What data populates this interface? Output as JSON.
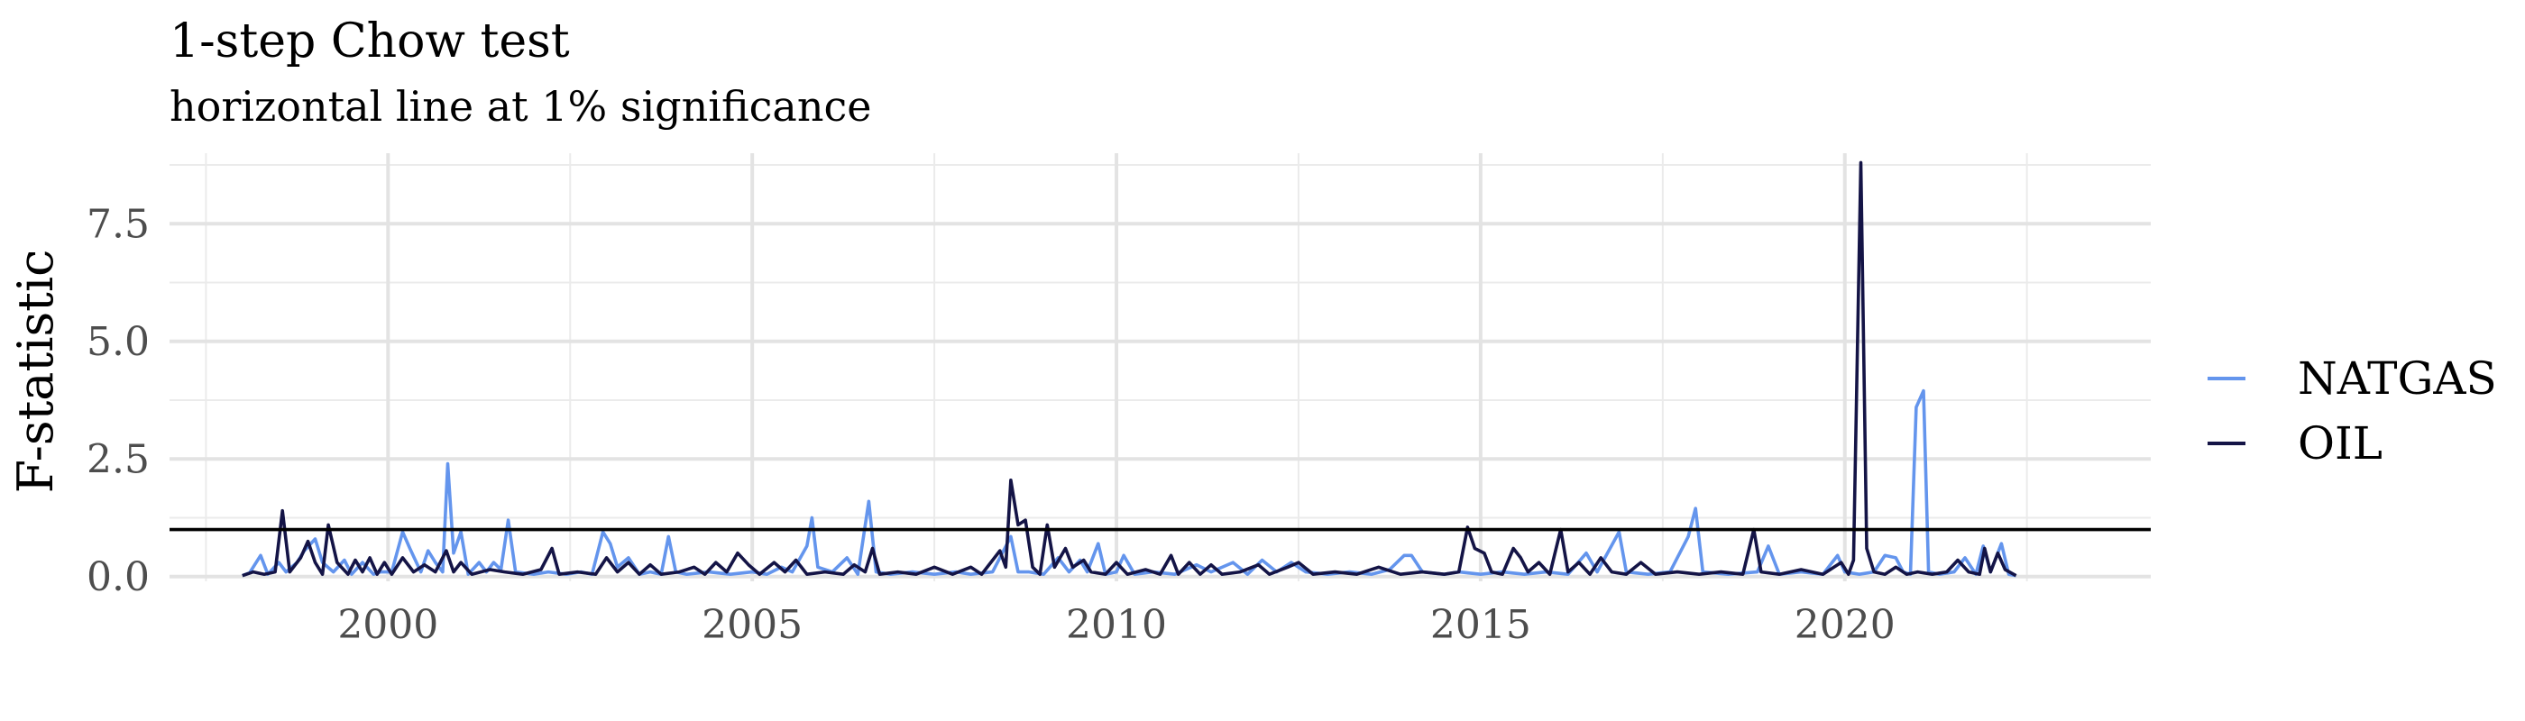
{
  "chart_data": {
    "type": "line",
    "title": "1-step Chow test",
    "subtitle": "horizontal line at 1% significance",
    "xlabel": "",
    "ylabel": "F-statistic",
    "xlim": [
      1997.0,
      2024.2
    ],
    "ylim": [
      -0.1,
      9.0
    ],
    "x_ticks": [
      2000,
      2005,
      2010,
      2015,
      2020
    ],
    "x_tick_labels": [
      "2000",
      "2005",
      "2010",
      "2015",
      "2020"
    ],
    "y_ticks": [
      0,
      2.5,
      5,
      7.5
    ],
    "y_tick_labels": [
      "0.0",
      "2.5",
      "5.0",
      "7.5"
    ],
    "reference_line": {
      "y": 1.0,
      "color": "#000000"
    },
    "grid": true,
    "legend_position": "right",
    "series": [
      {
        "name": "NATGAS",
        "color": "#6495ED",
        "points": [
          [
            1998.0,
            0.02
          ],
          [
            1998.1,
            0.08
          ],
          [
            1998.25,
            0.45
          ],
          [
            1998.35,
            0.05
          ],
          [
            1998.5,
            0.3
          ],
          [
            1998.6,
            0.1
          ],
          [
            1998.75,
            0.3
          ],
          [
            1998.85,
            0.55
          ],
          [
            1999.0,
            0.8
          ],
          [
            1999.1,
            0.3
          ],
          [
            1999.25,
            0.1
          ],
          [
            1999.4,
            0.35
          ],
          [
            1999.5,
            0.05
          ],
          [
            1999.65,
            0.3
          ],
          [
            1999.8,
            0.05
          ],
          [
            1999.9,
            0.1
          ],
          [
            2000.05,
            0.1
          ],
          [
            2000.2,
            0.95
          ],
          [
            2000.3,
            0.6
          ],
          [
            2000.45,
            0.1
          ],
          [
            2000.55,
            0.55
          ],
          [
            2000.65,
            0.3
          ],
          [
            2000.75,
            0.1
          ],
          [
            2000.82,
            2.4
          ],
          [
            2000.9,
            0.5
          ],
          [
            2001.0,
            0.95
          ],
          [
            2001.1,
            0.05
          ],
          [
            2001.25,
            0.3
          ],
          [
            2001.35,
            0.1
          ],
          [
            2001.45,
            0.3
          ],
          [
            2001.55,
            0.15
          ],
          [
            2001.65,
            1.2
          ],
          [
            2001.75,
            0.1
          ],
          [
            2002.0,
            0.05
          ],
          [
            2002.2,
            0.1
          ],
          [
            2002.45,
            0.05
          ],
          [
            2002.65,
            0.1
          ],
          [
            2002.8,
            0.05
          ],
          [
            2002.95,
            0.95
          ],
          [
            2003.05,
            0.7
          ],
          [
            2003.15,
            0.2
          ],
          [
            2003.3,
            0.4
          ],
          [
            2003.45,
            0.05
          ],
          [
            2003.6,
            0.1
          ],
          [
            2003.75,
            0.05
          ],
          [
            2003.85,
            0.85
          ],
          [
            2003.95,
            0.1
          ],
          [
            2004.1,
            0.05
          ],
          [
            2004.4,
            0.1
          ],
          [
            2004.7,
            0.05
          ],
          [
            2005.0,
            0.1
          ],
          [
            2005.2,
            0.05
          ],
          [
            2005.4,
            0.2
          ],
          [
            2005.55,
            0.1
          ],
          [
            2005.75,
            0.65
          ],
          [
            2005.82,
            1.25
          ],
          [
            2005.9,
            0.2
          ],
          [
            2006.1,
            0.1
          ],
          [
            2006.3,
            0.4
          ],
          [
            2006.45,
            0.05
          ],
          [
            2006.6,
            1.6
          ],
          [
            2006.7,
            0.1
          ],
          [
            2006.9,
            0.05
          ],
          [
            2007.2,
            0.1
          ],
          [
            2007.5,
            0.05
          ],
          [
            2007.8,
            0.1
          ],
          [
            2008.0,
            0.05
          ],
          [
            2008.3,
            0.1
          ],
          [
            2008.55,
            0.85
          ],
          [
            2008.65,
            0.1
          ],
          [
            2008.8,
            0.1
          ],
          [
            2009.0,
            0.05
          ],
          [
            2009.2,
            0.4
          ],
          [
            2009.35,
            0.1
          ],
          [
            2009.5,
            0.35
          ],
          [
            2009.6,
            0.1
          ],
          [
            2009.75,
            0.7
          ],
          [
            2009.85,
            0.05
          ],
          [
            2010.0,
            0.1
          ],
          [
            2010.1,
            0.45
          ],
          [
            2010.25,
            0.05
          ],
          [
            2010.5,
            0.1
          ],
          [
            2010.8,
            0.05
          ],
          [
            2011.1,
            0.25
          ],
          [
            2011.3,
            0.1
          ],
          [
            2011.6,
            0.3
          ],
          [
            2011.8,
            0.05
          ],
          [
            2012.0,
            0.35
          ],
          [
            2012.2,
            0.1
          ],
          [
            2012.4,
            0.3
          ],
          [
            2012.6,
            0.1
          ],
          [
            2012.9,
            0.05
          ],
          [
            2013.2,
            0.1
          ],
          [
            2013.5,
            0.05
          ],
          [
            2013.75,
            0.15
          ],
          [
            2013.95,
            0.45
          ],
          [
            2014.05,
            0.45
          ],
          [
            2014.2,
            0.1
          ],
          [
            2014.5,
            0.05
          ],
          [
            2014.7,
            0.1
          ],
          [
            2015.0,
            0.05
          ],
          [
            2015.3,
            0.1
          ],
          [
            2015.6,
            0.05
          ],
          [
            2015.9,
            0.1
          ],
          [
            2016.2,
            0.05
          ],
          [
            2016.45,
            0.5
          ],
          [
            2016.6,
            0.1
          ],
          [
            2016.9,
            0.95
          ],
          [
            2017.0,
            0.1
          ],
          [
            2017.3,
            0.05
          ],
          [
            2017.6,
            0.1
          ],
          [
            2017.85,
            0.85
          ],
          [
            2017.95,
            1.45
          ],
          [
            2018.05,
            0.1
          ],
          [
            2018.4,
            0.05
          ],
          [
            2018.8,
            0.1
          ],
          [
            2018.95,
            0.65
          ],
          [
            2019.1,
            0.05
          ],
          [
            2019.4,
            0.1
          ],
          [
            2019.7,
            0.05
          ],
          [
            2019.9,
            0.45
          ],
          [
            2020.0,
            0.1
          ],
          [
            2020.2,
            0.05
          ],
          [
            2020.4,
            0.1
          ],
          [
            2020.55,
            0.45
          ],
          [
            2020.7,
            0.4
          ],
          [
            2020.8,
            0.1
          ],
          [
            2020.9,
            0.05
          ],
          [
            2020.98,
            3.6
          ],
          [
            2021.08,
            3.95
          ],
          [
            2021.15,
            0.1
          ],
          [
            2021.3,
            0.05
          ],
          [
            2021.5,
            0.1
          ],
          [
            2021.65,
            0.4
          ],
          [
            2021.8,
            0.05
          ],
          [
            2021.9,
            0.65
          ],
          [
            2022.0,
            0.1
          ],
          [
            2022.15,
            0.7
          ],
          [
            2022.25,
            0.05
          ],
          [
            2022.35,
            0.02
          ]
        ]
      },
      {
        "name": "OIL",
        "color": "#141446",
        "points": [
          [
            1998.0,
            0.02
          ],
          [
            1998.15,
            0.1
          ],
          [
            1998.3,
            0.05
          ],
          [
            1998.45,
            0.1
          ],
          [
            1998.55,
            1.4
          ],
          [
            1998.65,
            0.1
          ],
          [
            1998.8,
            0.4
          ],
          [
            1998.9,
            0.75
          ],
          [
            1999.0,
            0.3
          ],
          [
            1999.1,
            0.05
          ],
          [
            1999.18,
            1.1
          ],
          [
            1999.3,
            0.3
          ],
          [
            1999.45,
            0.05
          ],
          [
            1999.55,
            0.35
          ],
          [
            1999.65,
            0.1
          ],
          [
            1999.75,
            0.4
          ],
          [
            1999.85,
            0.05
          ],
          [
            1999.95,
            0.3
          ],
          [
            2000.05,
            0.05
          ],
          [
            2000.2,
            0.4
          ],
          [
            2000.35,
            0.1
          ],
          [
            2000.5,
            0.25
          ],
          [
            2000.65,
            0.1
          ],
          [
            2000.8,
            0.55
          ],
          [
            2000.9,
            0.1
          ],
          [
            2001.0,
            0.3
          ],
          [
            2001.15,
            0.05
          ],
          [
            2001.4,
            0.15
          ],
          [
            2001.6,
            0.1
          ],
          [
            2001.85,
            0.05
          ],
          [
            2002.1,
            0.15
          ],
          [
            2002.25,
            0.6
          ],
          [
            2002.35,
            0.05
          ],
          [
            2002.6,
            0.1
          ],
          [
            2002.85,
            0.05
          ],
          [
            2003.0,
            0.4
          ],
          [
            2003.15,
            0.1
          ],
          [
            2003.3,
            0.3
          ],
          [
            2003.45,
            0.05
          ],
          [
            2003.6,
            0.25
          ],
          [
            2003.75,
            0.05
          ],
          [
            2004.0,
            0.1
          ],
          [
            2004.2,
            0.2
          ],
          [
            2004.35,
            0.05
          ],
          [
            2004.5,
            0.3
          ],
          [
            2004.65,
            0.1
          ],
          [
            2004.8,
            0.5
          ],
          [
            2004.95,
            0.25
          ],
          [
            2005.1,
            0.05
          ],
          [
            2005.3,
            0.3
          ],
          [
            2005.45,
            0.1
          ],
          [
            2005.6,
            0.35
          ],
          [
            2005.75,
            0.05
          ],
          [
            2006.0,
            0.1
          ],
          [
            2006.25,
            0.05
          ],
          [
            2006.4,
            0.25
          ],
          [
            2006.55,
            0.1
          ],
          [
            2006.65,
            0.6
          ],
          [
            2006.75,
            0.05
          ],
          [
            2007.0,
            0.1
          ],
          [
            2007.25,
            0.05
          ],
          [
            2007.5,
            0.2
          ],
          [
            2007.75,
            0.05
          ],
          [
            2008.0,
            0.2
          ],
          [
            2008.15,
            0.05
          ],
          [
            2008.4,
            0.55
          ],
          [
            2008.48,
            0.2
          ],
          [
            2008.55,
            2.05
          ],
          [
            2008.65,
            1.1
          ],
          [
            2008.75,
            1.2
          ],
          [
            2008.85,
            0.2
          ],
          [
            2008.95,
            0.05
          ],
          [
            2009.05,
            1.1
          ],
          [
            2009.15,
            0.2
          ],
          [
            2009.3,
            0.6
          ],
          [
            2009.4,
            0.2
          ],
          [
            2009.55,
            0.35
          ],
          [
            2009.65,
            0.1
          ],
          [
            2009.85,
            0.05
          ],
          [
            2010.0,
            0.3
          ],
          [
            2010.15,
            0.05
          ],
          [
            2010.4,
            0.15
          ],
          [
            2010.6,
            0.05
          ],
          [
            2010.75,
            0.45
          ],
          [
            2010.85,
            0.05
          ],
          [
            2011.0,
            0.3
          ],
          [
            2011.15,
            0.05
          ],
          [
            2011.3,
            0.25
          ],
          [
            2011.45,
            0.05
          ],
          [
            2011.7,
            0.1
          ],
          [
            2011.95,
            0.25
          ],
          [
            2012.1,
            0.05
          ],
          [
            2012.35,
            0.2
          ],
          [
            2012.5,
            0.3
          ],
          [
            2012.7,
            0.05
          ],
          [
            2013.0,
            0.1
          ],
          [
            2013.3,
            0.05
          ],
          [
            2013.6,
            0.2
          ],
          [
            2013.9,
            0.05
          ],
          [
            2014.2,
            0.1
          ],
          [
            2014.5,
            0.05
          ],
          [
            2014.7,
            0.1
          ],
          [
            2014.82,
            1.05
          ],
          [
            2014.92,
            0.6
          ],
          [
            2015.05,
            0.5
          ],
          [
            2015.15,
            0.1
          ],
          [
            2015.3,
            0.05
          ],
          [
            2015.45,
            0.6
          ],
          [
            2015.55,
            0.4
          ],
          [
            2015.65,
            0.1
          ],
          [
            2015.8,
            0.3
          ],
          [
            2015.95,
            0.05
          ],
          [
            2016.1,
            1.0
          ],
          [
            2016.2,
            0.1
          ],
          [
            2016.35,
            0.3
          ],
          [
            2016.5,
            0.05
          ],
          [
            2016.65,
            0.4
          ],
          [
            2016.8,
            0.1
          ],
          [
            2017.0,
            0.05
          ],
          [
            2017.2,
            0.3
          ],
          [
            2017.4,
            0.05
          ],
          [
            2017.7,
            0.1
          ],
          [
            2018.0,
            0.05
          ],
          [
            2018.3,
            0.1
          ],
          [
            2018.6,
            0.05
          ],
          [
            2018.75,
            1.0
          ],
          [
            2018.85,
            0.1
          ],
          [
            2019.1,
            0.05
          ],
          [
            2019.4,
            0.15
          ],
          [
            2019.7,
            0.05
          ],
          [
            2019.95,
            0.3
          ],
          [
            2020.05,
            0.05
          ],
          [
            2020.12,
            0.35
          ],
          [
            2020.22,
            8.8
          ],
          [
            2020.3,
            0.6
          ],
          [
            2020.4,
            0.1
          ],
          [
            2020.55,
            0.05
          ],
          [
            2020.7,
            0.2
          ],
          [
            2020.85,
            0.05
          ],
          [
            2021.0,
            0.1
          ],
          [
            2021.2,
            0.05
          ],
          [
            2021.4,
            0.1
          ],
          [
            2021.55,
            0.35
          ],
          [
            2021.7,
            0.1
          ],
          [
            2021.85,
            0.05
          ],
          [
            2021.92,
            0.6
          ],
          [
            2022.0,
            0.1
          ],
          [
            2022.1,
            0.5
          ],
          [
            2022.2,
            0.15
          ],
          [
            2022.35,
            0.02
          ]
        ]
      }
    ]
  }
}
